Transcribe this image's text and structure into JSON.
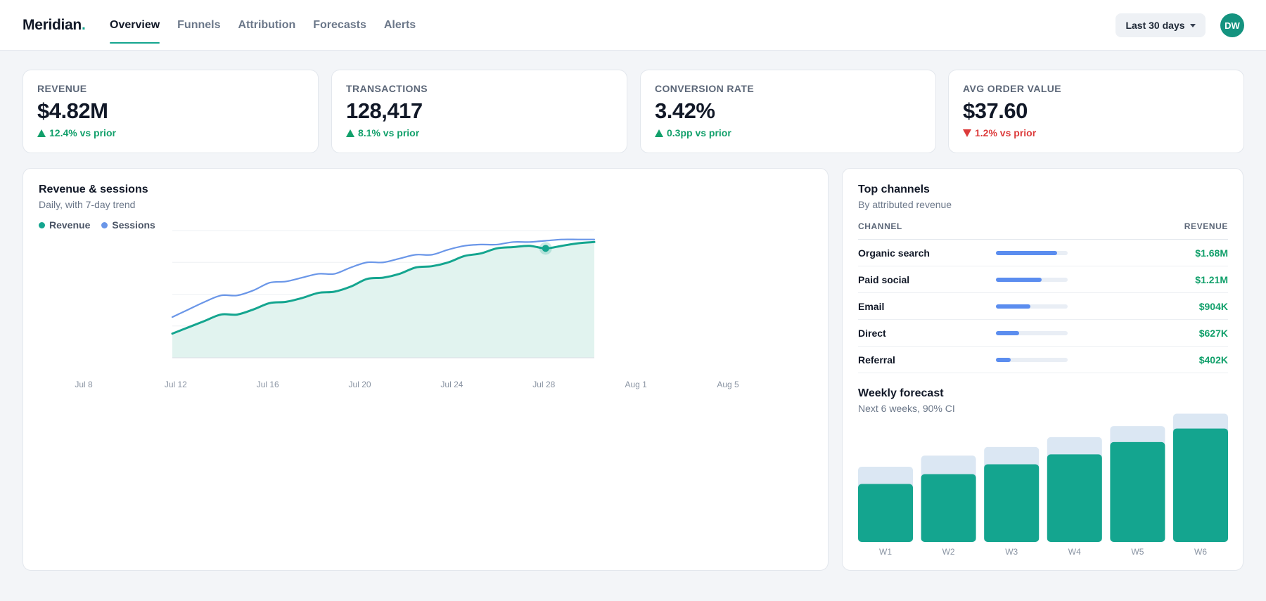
{
  "brand": {
    "name": "Meridian",
    "dot": "."
  },
  "nav": [
    {
      "label": "Overview",
      "active": true
    },
    {
      "label": "Funnels",
      "active": false
    },
    {
      "label": "Attribution",
      "active": false
    },
    {
      "label": "Forecasts",
      "active": false
    },
    {
      "label": "Alerts",
      "active": false
    }
  ],
  "range_button": {
    "label": "Last 30 days"
  },
  "avatar": {
    "initials": "DW"
  },
  "kpis": [
    {
      "label": "REVENUE",
      "value": "$4.82M",
      "delta": "12.4% vs prior",
      "direction": "up"
    },
    {
      "label": "TRANSACTIONS",
      "value": "128,417",
      "delta": "8.1% vs prior",
      "direction": "up"
    },
    {
      "label": "CONVERSION RATE",
      "value": "3.42%",
      "delta": "0.3pp vs prior",
      "direction": "up"
    },
    {
      "label": "AVG ORDER VALUE",
      "value": "$37.60",
      "delta": "1.2% vs prior",
      "direction": "down"
    }
  ],
  "revenue_chart": {
    "title": "Revenue & sessions",
    "subtitle": "Daily, with 7-day trend",
    "legend": [
      {
        "label": "Revenue",
        "color": "#14a58f"
      },
      {
        "label": "Sessions",
        "color": "#6a96e8"
      }
    ]
  },
  "channels": {
    "title": "Top channels",
    "subtitle": "By attributed revenue",
    "col_channel": "CHANNEL",
    "col_revenue": "REVENUE",
    "rows": [
      {
        "name": "Organic search",
        "value": "$1.68M",
        "share": 0.85
      },
      {
        "name": "Paid social",
        "value": "$1.21M",
        "share": 0.64
      },
      {
        "name": "Email",
        "value": "$904K",
        "share": 0.48
      },
      {
        "name": "Direct",
        "value": "$627K",
        "share": 0.32
      },
      {
        "name": "Referral",
        "value": "$402K",
        "share": 0.21
      }
    ]
  },
  "forecast": {
    "title": "Weekly forecast",
    "subtitle": "Next 6 weeks, 90% CI"
  },
  "colors": {
    "accent": "#14a58f",
    "sessions": "#6a96e8",
    "positive": "#12a06b",
    "negative": "#dc3b3b",
    "ci_band": "#dbe7f3"
  },
  "chart_data": [
    {
      "type": "line",
      "x_ticks": [
        "Jul 8",
        "Jul 12",
        "Jul 16",
        "Jul 20",
        "Jul 24",
        "Jul 28",
        "Aug 1",
        "Aug 5"
      ],
      "x": [
        0,
        1,
        2,
        3,
        4,
        5,
        6,
        7,
        8,
        9,
        10,
        11,
        12,
        13,
        14,
        15,
        16,
        17,
        18,
        19,
        20,
        21,
        22,
        23,
        24,
        25,
        26
      ],
      "ylim": [
        0,
        100
      ],
      "grid": true,
      "legend_position": "top-left",
      "highlight_index": 23,
      "series": [
        {
          "name": "Revenue",
          "values": [
            19,
            24,
            29,
            34,
            34,
            38,
            43,
            44,
            47,
            51,
            52,
            56,
            62,
            63,
            66,
            71,
            72,
            75,
            80,
            82,
            86,
            87,
            88,
            86,
            88,
            90,
            91
          ],
          "area": true
        },
        {
          "name": "Sessions",
          "values": [
            32,
            38,
            44,
            49,
            49,
            53,
            59,
            60,
            63,
            66,
            66,
            71,
            75,
            75,
            78,
            81,
            81,
            85,
            88,
            89,
            89,
            91,
            91,
            92,
            93,
            93,
            93
          ]
        }
      ]
    },
    {
      "type": "bar",
      "categories": [
        "W1",
        "W2",
        "W3",
        "W4",
        "W5",
        "W6"
      ],
      "series": [
        {
          "name": "Forecast",
          "values": [
            47,
            55,
            63,
            71,
            81,
            92
          ]
        },
        {
          "name": "90% CI upper",
          "values": [
            61,
            70,
            77,
            85,
            94,
            104
          ]
        }
      ],
      "ylim": [
        0,
        110
      ]
    }
  ]
}
